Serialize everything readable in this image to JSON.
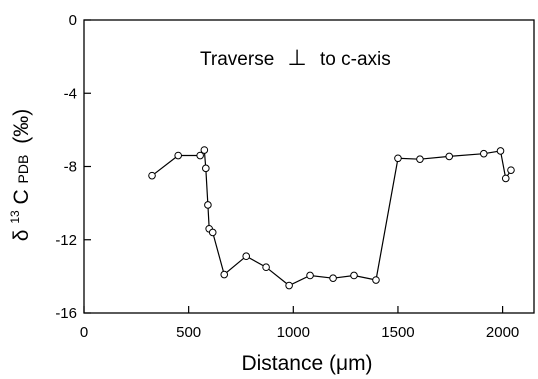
{
  "chart_data": {
    "type": "line",
    "annotation": {
      "text_before": "Traverse",
      "symbol": "⊥",
      "text_after": "to c-axis"
    },
    "xlabel": "Distance (μm)",
    "ylabel": {
      "delta": "δ",
      "superscript": "13",
      "main": "C",
      "subscript": "PDB",
      "unit": "(‰)"
    },
    "xlim": [
      0,
      2150
    ],
    "ylim": [
      -16,
      0
    ],
    "xticks": [
      0,
      500,
      1000,
      1500,
      2000
    ],
    "yticks": [
      0,
      -4,
      -8,
      -12,
      -16
    ],
    "xtick_labels": [
      "0",
      "500",
      "1000",
      "1500",
      "2000"
    ],
    "ytick_labels": [
      "0",
      "-4",
      "-8",
      "-12",
      "-16"
    ],
    "grid": false,
    "marker": "open-circle",
    "series": [
      {
        "points": [
          [
            325,
            -8.5
          ],
          [
            450,
            -7.4
          ],
          [
            555,
            -7.4
          ],
          [
            575,
            -7.1
          ],
          [
            582,
            -8.1
          ],
          [
            592,
            -10.1
          ],
          [
            598,
            -11.4
          ],
          [
            615,
            -11.6
          ],
          [
            670,
            -13.9
          ],
          [
            775,
            -12.9
          ],
          [
            870,
            -13.5
          ],
          [
            980,
            -14.5
          ],
          [
            1080,
            -13.95
          ],
          [
            1190,
            -14.1
          ],
          [
            1290,
            -13.95
          ],
          [
            1395,
            -14.2
          ],
          [
            1500,
            -7.55
          ],
          [
            1605,
            -7.6
          ],
          [
            1745,
            -7.45
          ],
          [
            1910,
            -7.3
          ],
          [
            1990,
            -7.15
          ],
          [
            2015,
            -8.65
          ],
          [
            2040,
            -8.2
          ]
        ]
      }
    ]
  }
}
